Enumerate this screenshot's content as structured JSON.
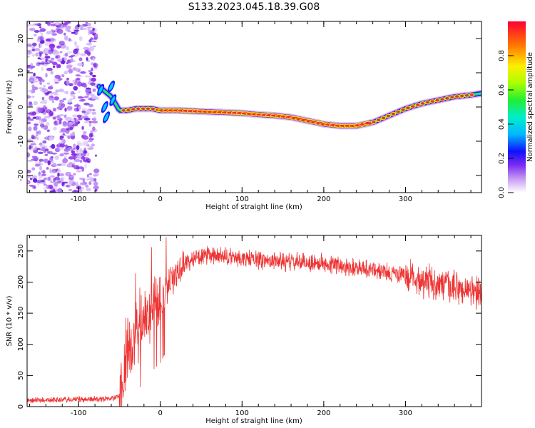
{
  "title": "S133.2023.045.18.39.G08",
  "chart_data": [
    {
      "type": "heatmap",
      "xlabel": "Height of straight line (km)",
      "ylabel": "Frequency (Hz)",
      "xlim": [
        -163,
        393
      ],
      "ylim": [
        -25,
        25
      ],
      "xticks": [
        -100,
        0,
        100,
        200,
        300
      ],
      "yticks": [
        -20,
        -10,
        0,
        10,
        20
      ],
      "colorbar": {
        "label": "Normalized spectral amplitude",
        "range": [
          0.0,
          1.0
        ],
        "ticks": [
          0.0,
          0.2,
          0.4,
          0.6,
          0.8
        ]
      },
      "ridge": {
        "x": [
          -75,
          -60,
          -50,
          -40,
          -30,
          -20,
          -10,
          0,
          20,
          40,
          60,
          80,
          100,
          120,
          140,
          160,
          180,
          200,
          220,
          240,
          260,
          280,
          300,
          320,
          340,
          360,
          380,
          393
        ],
        "y": [
          6,
          3,
          -1,
          -1,
          -0.5,
          -0.5,
          -0.5,
          -1,
          -1,
          -1.2,
          -1.4,
          -1.6,
          -1.8,
          -2.2,
          -2.5,
          -3,
          -4,
          -5,
          -5.5,
          -5.5,
          -4.5,
          -2.5,
          -0.5,
          1,
          2,
          3,
          3.5,
          4
        ]
      }
    },
    {
      "type": "line",
      "xlabel": "Height of straight line (km)",
      "ylabel": "SNR (10 * v/v)",
      "xlim": [
        -163,
        393
      ],
      "ylim": [
        0,
        275
      ],
      "xticks": [
        -100,
        0,
        100,
        200,
        300
      ],
      "yticks": [
        0,
        50,
        100,
        150,
        200,
        250
      ],
      "color": "#ee3333",
      "series": [
        {
          "x": [
            -163,
            -120,
            -80,
            -55,
            -48,
            -42,
            -35,
            -25,
            -15,
            -8,
            0,
            10,
            20,
            30,
            40,
            60,
            80,
            100,
            150,
            200,
            250,
            300,
            330,
            360,
            393
          ],
          "values": [
            10,
            11,
            12,
            14,
            20,
            80,
            100,
            130,
            150,
            160,
            170,
            195,
            215,
            230,
            238,
            242,
            240,
            238,
            233,
            230,
            222,
            210,
            200,
            190,
            180
          ]
        }
      ]
    }
  ]
}
